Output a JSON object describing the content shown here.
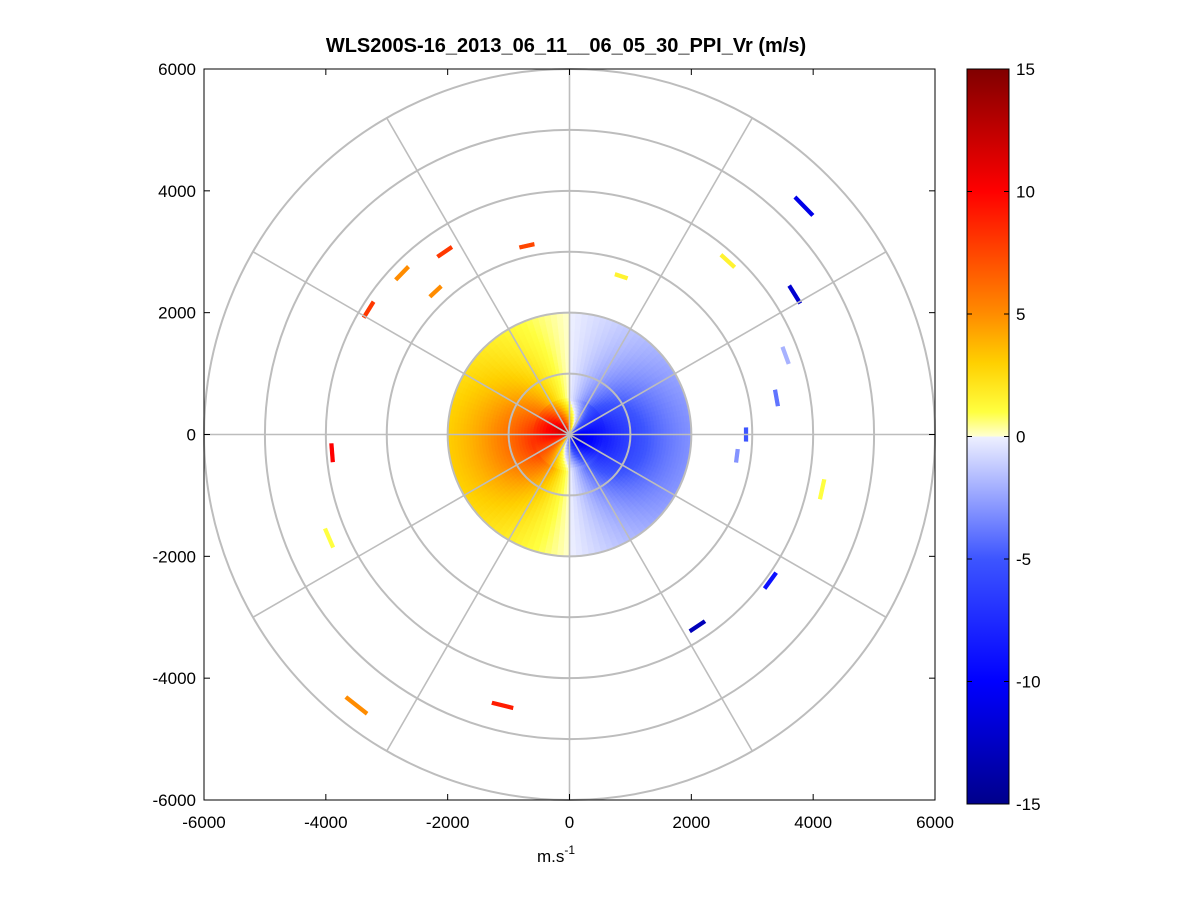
{
  "chart_data": {
    "type": "heatmap",
    "subtype": "polar-ppi-scan",
    "title": "WLS200S-16_2013_06_11__06_05_30_PPI_Vr (m/s)",
    "xlabel_base": "m.s",
    "xlabel_exp": "-1",
    "ylabel": "",
    "xlim": [
      -6000,
      6000
    ],
    "ylim": [
      -6000,
      6000
    ],
    "x_ticks": [
      "-6000",
      "-4000",
      "-2000",
      "0",
      "2000",
      "4000",
      "6000"
    ],
    "y_ticks": [
      "6000",
      "4000",
      "2000",
      "0",
      "-2000",
      "-4000",
      "-6000"
    ],
    "x_tick_values": [
      -6000,
      -4000,
      -2000,
      0,
      2000,
      4000,
      6000
    ],
    "y_tick_values": [
      6000,
      4000,
      2000,
      0,
      -2000,
      -4000,
      -6000
    ],
    "range_rings_m": [
      1000,
      2000,
      3000,
      4000,
      5000,
      6000
    ],
    "spokes_deg": [
      0,
      30,
      60,
      90,
      120,
      150,
      180,
      210,
      240,
      270,
      300,
      330
    ],
    "grid": true,
    "colorbar": {
      "label_values": [
        15,
        10,
        5,
        0,
        -5,
        -10,
        -15
      ],
      "labels": [
        "15",
        "10",
        "5",
        "0",
        "-5",
        "-10",
        "-15"
      ],
      "min": -15,
      "max": 15,
      "stops": [
        {
          "v": -15,
          "color": "#00008b"
        },
        {
          "v": -10,
          "color": "#0000ff"
        },
        {
          "v": -5,
          "color": "#3d55ff"
        },
        {
          "v": 0,
          "color": "#eef0ff"
        },
        {
          "v": 0.01,
          "color": "#ffffd0"
        },
        {
          "v": 1,
          "color": "#ffff40"
        },
        {
          "v": 3,
          "color": "#ffd000"
        },
        {
          "v": 5,
          "color": "#ff8c00"
        },
        {
          "v": 10,
          "color": "#ff0000"
        },
        {
          "v": 15,
          "color": "#800000"
        }
      ]
    },
    "core_scan": {
      "max_range_m": 2000,
      "range_gate_m": 50,
      "azimuth_step_deg": 3,
      "description": "Radial velocity field: negative (blue) on east half, positive (orange/red) on west half; strongest near center",
      "note": "Vr approx = -12 * sin(azimuth) near center, weakening with range"
    },
    "scattered_returns": [
      {
        "x": 3850,
        "y": 3750,
        "v": -11
      },
      {
        "x": 3700,
        "y": 2300,
        "v": -12
      },
      {
        "x": 2600,
        "y": 2850,
        "v": 1.5
      },
      {
        "x": 4150,
        "y": -900,
        "v": 1
      },
      {
        "x": 3300,
        "y": -2400,
        "v": -9
      },
      {
        "x": 2100,
        "y": -3150,
        "v": -13
      },
      {
        "x": -3950,
        "y": -1700,
        "v": 1
      },
      {
        "x": -3500,
        "y": -4450,
        "v": 5
      },
      {
        "x": -1100,
        "y": -4450,
        "v": 9
      },
      {
        "x": -3900,
        "y": -300,
        "v": 10
      },
      {
        "x": -3300,
        "y": 2050,
        "v": 8
      },
      {
        "x": -2750,
        "y": 2650,
        "v": 5
      },
      {
        "x": -2050,
        "y": 3000,
        "v": 8
      },
      {
        "x": -700,
        "y": 3100,
        "v": 7.5
      },
      {
        "x": -2200,
        "y": 2350,
        "v": 5
      },
      {
        "x": 850,
        "y": 2600,
        "v": 1.5
      },
      {
        "x": 3550,
        "y": 1300,
        "v": -2
      },
      {
        "x": 3400,
        "y": 600,
        "v": -4
      },
      {
        "x": 2900,
        "y": 0,
        "v": -5
      },
      {
        "x": 2750,
        "y": -350,
        "v": -3
      }
    ]
  }
}
